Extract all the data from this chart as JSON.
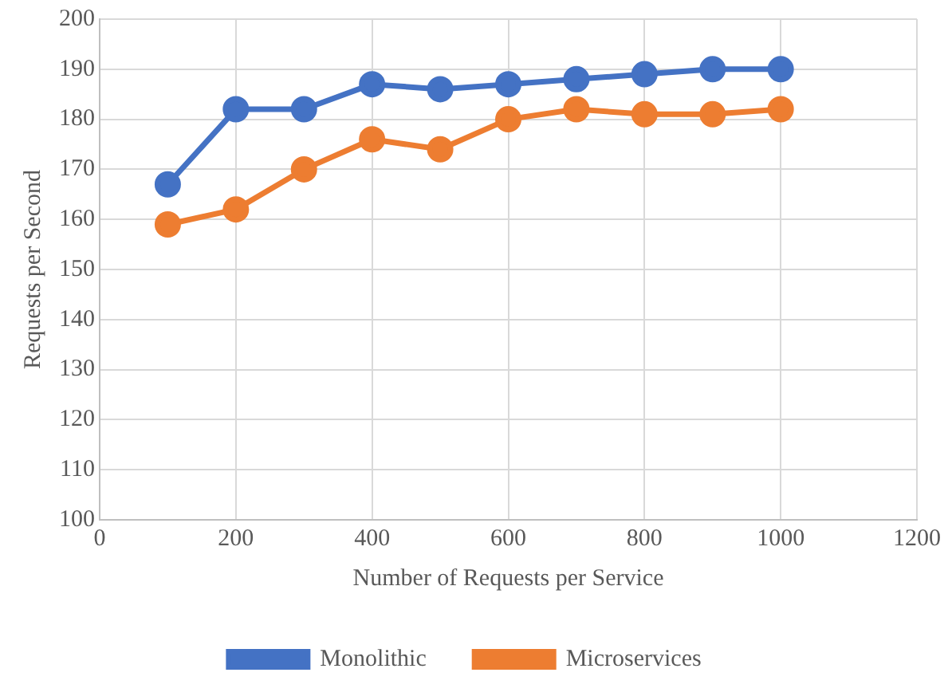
{
  "chart_data": {
    "type": "line",
    "xlabel": "Number of Requests per Service",
    "ylabel": "Requests per Second",
    "x": [
      100,
      200,
      300,
      400,
      500,
      600,
      700,
      800,
      900,
      1000
    ],
    "series": [
      {
        "name": "Monolithic",
        "color": "#4472c4",
        "values": [
          167,
          182,
          182,
          187,
          186,
          187,
          188,
          189,
          190,
          190
        ]
      },
      {
        "name": "Microservices",
        "color": "#ed7d31",
        "values": [
          159,
          162,
          170,
          176,
          174,
          180,
          182,
          181,
          181,
          182
        ]
      }
    ],
    "xlim": [
      0,
      1200
    ],
    "xticks": [
      0,
      200,
      400,
      600,
      800,
      1000,
      1200
    ],
    "ylim": [
      100,
      200
    ],
    "yticks": [
      100,
      110,
      120,
      130,
      140,
      150,
      160,
      170,
      180,
      190,
      200
    ],
    "grid": true,
    "legend": "bottom",
    "marker": "circle",
    "line_style": "solid"
  }
}
